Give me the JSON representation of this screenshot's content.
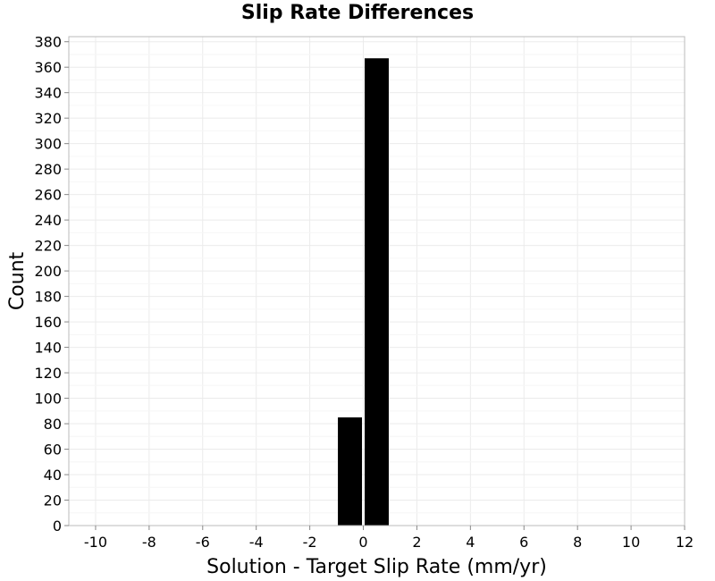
{
  "chart_data": {
    "type": "bar",
    "title": "Slip Rate Differences",
    "xlabel": "Solution - Target Slip Rate (mm/yr)",
    "ylabel": "Count",
    "xlim": [
      -11,
      12
    ],
    "ylim": [
      0,
      384
    ],
    "x_ticks": [
      -10,
      -8,
      -6,
      -4,
      -2,
      0,
      2,
      4,
      6,
      8,
      10,
      12
    ],
    "y_ticks": [
      0,
      20,
      40,
      60,
      80,
      100,
      120,
      140,
      160,
      180,
      200,
      220,
      240,
      260,
      280,
      300,
      320,
      340,
      360,
      380
    ],
    "bin_width": 1,
    "bars": [
      {
        "x_start": -1,
        "x_end": 0,
        "value": 85
      },
      {
        "x_start": 0,
        "x_end": 1,
        "value": 367
      }
    ],
    "grid": true,
    "bar_color": "#000000",
    "grid_color": "#ebebeb",
    "frame_color": "#bbbbbb"
  }
}
